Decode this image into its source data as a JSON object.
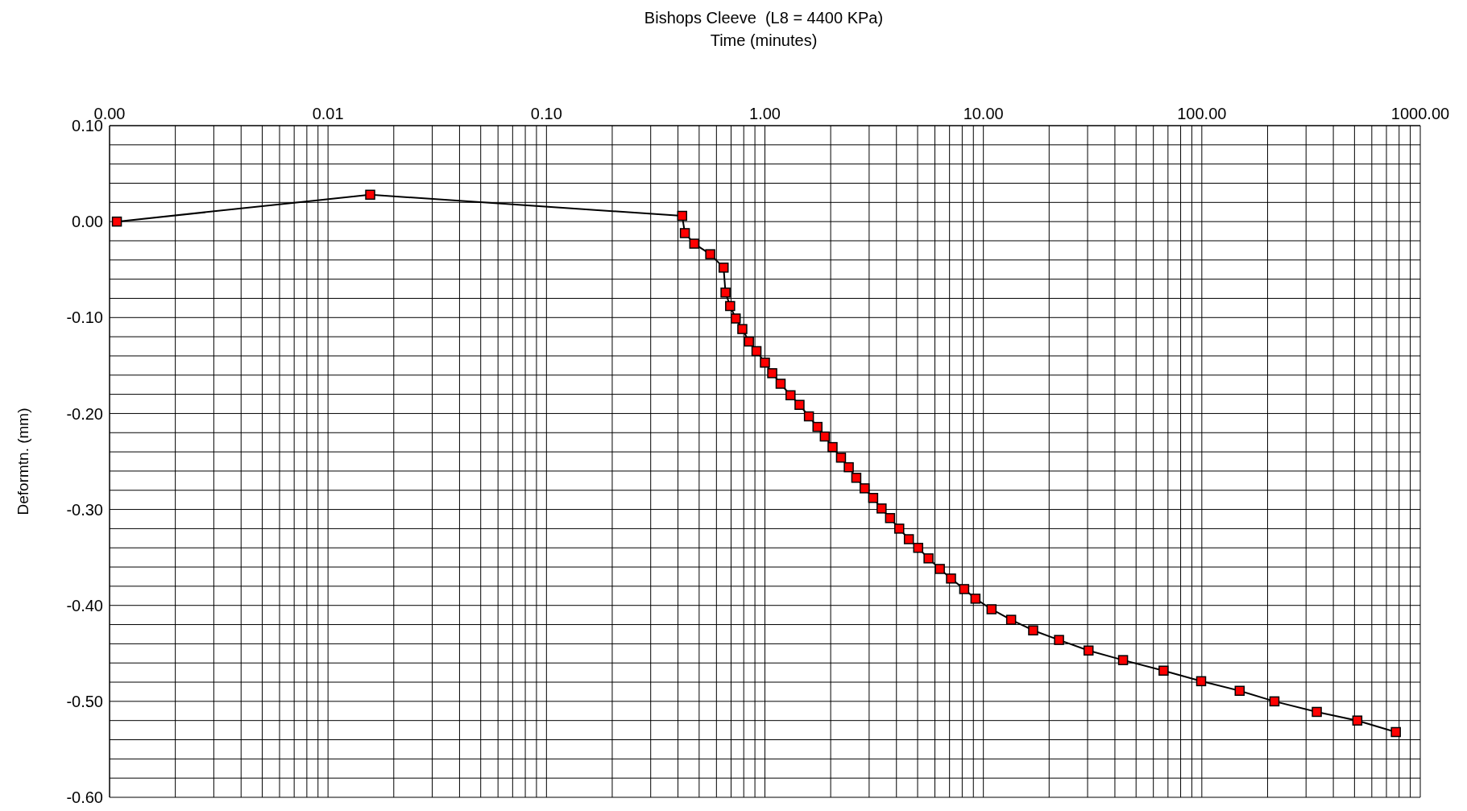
{
  "chart_data": {
    "type": "line",
    "title": "Bishops Cleeve  (L8 = 4400 KPa)",
    "xlabel": "Time (minutes)",
    "ylabel": "Deformtn. (mm)",
    "log": "x",
    "grid": true,
    "legend": false,
    "marker": "square",
    "line_style": "solid",
    "xlim": [
      0.001,
      1000
    ],
    "xticks": [
      {
        "value": 0.001,
        "label": "0.00"
      },
      {
        "value": 0.01,
        "label": "0.01"
      },
      {
        "value": 0.1,
        "label": "0.10"
      },
      {
        "value": 1,
        "label": "1.00"
      },
      {
        "value": 10,
        "label": "10.00"
      },
      {
        "value": 100,
        "label": "100.00"
      },
      {
        "value": 1000,
        "label": "1000.00"
      }
    ],
    "ylim": [
      -0.6,
      0.1
    ],
    "yticks": [
      {
        "value": 0.1,
        "label": "0.10"
      },
      {
        "value": 0,
        "label": "0.00"
      },
      {
        "value": -0.1,
        "label": "-0.10"
      },
      {
        "value": -0.2,
        "label": "-0.20"
      },
      {
        "value": -0.3,
        "label": "-0.30"
      },
      {
        "value": -0.4,
        "label": "-0.40"
      },
      {
        "value": -0.5,
        "label": "-0.50"
      },
      {
        "value": -0.6,
        "label": "-0.60"
      }
    ],
    "x": [
      0.00108,
      0.0156,
      0.418,
      0.43,
      0.475,
      0.562,
      0.647,
      0.66,
      0.693,
      0.735,
      0.788,
      0.845,
      0.915,
      1.0,
      1.08,
      1.18,
      1.31,
      1.44,
      1.59,
      1.74,
      1.88,
      2.04,
      2.23,
      2.42,
      2.62,
      2.86,
      3.13,
      3.42,
      3.74,
      4.12,
      4.56,
      5.03,
      5.61,
      6.32,
      7.11,
      8.17,
      9.2,
      10.9,
      13.4,
      16.9,
      22.2,
      30.3,
      43.6,
      66.8,
      99.3,
      149,
      215,
      336,
      515,
      773
    ],
    "series": [
      {
        "color": "#ff0000",
        "values": [
          0,
          0.028,
          0.006,
          -0.012,
          -0.023,
          -0.034,
          -0.048,
          -0.074,
          -0.088,
          -0.101,
          -0.112,
          -0.125,
          -0.135,
          -0.147,
          -0.158,
          -0.169,
          -0.181,
          -0.191,
          -0.203,
          -0.214,
          -0.224,
          -0.235,
          -0.246,
          -0.256,
          -0.267,
          -0.278,
          -0.288,
          -0.299,
          -0.309,
          -0.32,
          -0.331,
          -0.34,
          -0.351,
          -0.362,
          -0.372,
          -0.383,
          -0.393,
          -0.404,
          -0.415,
          -0.426,
          -0.436,
          -0.447,
          -0.457,
          -0.468,
          -0.479,
          -0.489,
          -0.5,
          -0.511,
          -0.52,
          -0.532
        ]
      }
    ]
  }
}
